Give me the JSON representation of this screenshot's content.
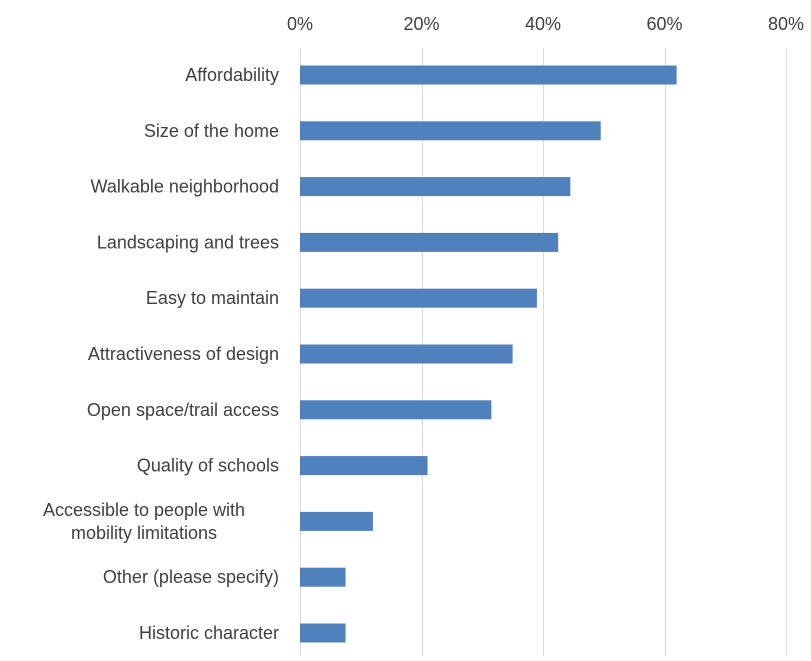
{
  "chart_data": {
    "type": "bar",
    "orientation": "horizontal",
    "title": "",
    "xlabel": "",
    "ylabel": "",
    "categories": [
      "Affordability",
      "Size of the home",
      "Walkable neighborhood",
      "Landscaping and trees",
      "Easy to maintain",
      "Attractiveness of design",
      "Open space/trail access",
      "Quality of schools",
      "Accessible to people with mobility limitations",
      "Other (please specify)",
      "Historic character"
    ],
    "category_label_lines": [
      [
        "Affordability"
      ],
      [
        "Size of the home"
      ],
      [
        "Walkable neighborhood"
      ],
      [
        "Landscaping and trees"
      ],
      [
        "Easy to maintain"
      ],
      [
        "Attractiveness of design"
      ],
      [
        "Open space/trail access"
      ],
      [
        "Quality of schools"
      ],
      [
        "Accessible to people with",
        "mobility limitations"
      ],
      [
        "Other (please specify)"
      ],
      [
        "Historic character"
      ]
    ],
    "values": [
      62,
      49.5,
      44.5,
      42.5,
      39,
      35,
      31.5,
      21,
      12,
      7.5,
      7.5
    ],
    "xlim": [
      0,
      80
    ],
    "x_ticks": [
      0,
      20,
      40,
      60,
      80
    ],
    "x_tick_labels": [
      "0%",
      "20%",
      "40%",
      "60%",
      "80%"
    ],
    "axis_position": "top",
    "grid": true,
    "legend": "none",
    "bar_color": "#4f81bd",
    "grid_color": "#d9d9d9",
    "text_color": "#404040"
  }
}
